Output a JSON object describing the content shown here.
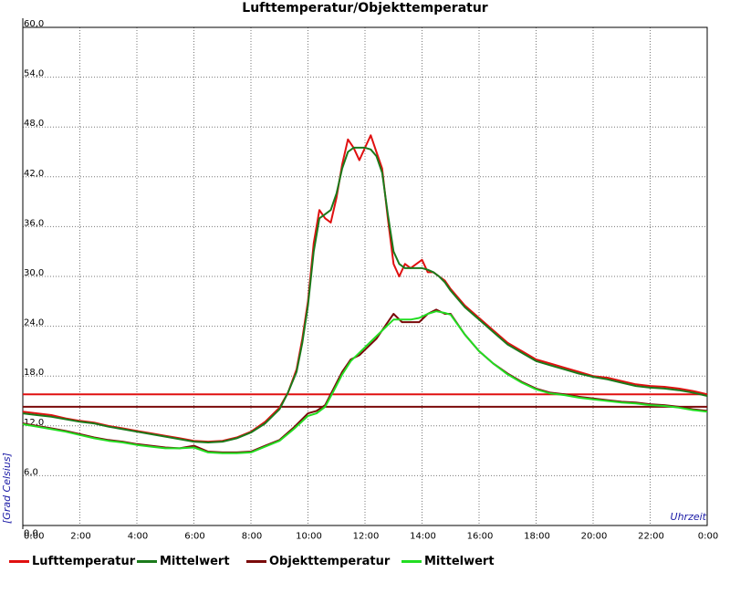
{
  "chart_data": {
    "type": "line",
    "title": "Lufttemperatur/Objekttemperatur",
    "xlabel": "Uhrzeit",
    "ylabel": "[Grad Celsius]",
    "xlim": [
      0,
      24
    ],
    "ylim": [
      0,
      60
    ],
    "x_ticks": [
      {
        "value": 0,
        "label": "0:00"
      },
      {
        "value": 2,
        "label": "2:00"
      },
      {
        "value": 4,
        "label": "4:00"
      },
      {
        "value": 6,
        "label": "6:00"
      },
      {
        "value": 8,
        "label": "8:00"
      },
      {
        "value": 10,
        "label": "10:00"
      },
      {
        "value": 12,
        "label": "12:00"
      },
      {
        "value": 14,
        "label": "14:00"
      },
      {
        "value": 16,
        "label": "16:00"
      },
      {
        "value": 18,
        "label": "18:00"
      },
      {
        "value": 20,
        "label": "20:00"
      },
      {
        "value": 22,
        "label": "22:00"
      },
      {
        "value": 24,
        "label": "0:00"
      }
    ],
    "y_ticks": [
      {
        "value": 6,
        "label": "6,0"
      },
      {
        "value": 12,
        "label": "12,0"
      },
      {
        "value": 18,
        "label": "18,0"
      },
      {
        "value": 24,
        "label": "24,0"
      },
      {
        "value": 30,
        "label": "30,0"
      },
      {
        "value": 36,
        "label": "36,0"
      },
      {
        "value": 42,
        "label": "42,0"
      },
      {
        "value": 48,
        "label": "48,0"
      },
      {
        "value": 54,
        "label": "54,0"
      },
      {
        "value": 60,
        "label": "60,0"
      }
    ],
    "y_extra_label": "0,0",
    "grid": true,
    "legend_position": "bottom",
    "series": [
      {
        "name": "Lufttemperatur",
        "color": "#e01010",
        "x": [
          0,
          0.5,
          1,
          1.5,
          2,
          2.5,
          3,
          3.5,
          4,
          4.5,
          5,
          5.5,
          6,
          6.5,
          7,
          7.5,
          8,
          8.5,
          9,
          9.3,
          9.6,
          9.8,
          10,
          10.2,
          10.4,
          10.6,
          10.8,
          11,
          11.2,
          11.4,
          11.6,
          11.8,
          12,
          12.2,
          12.4,
          12.6,
          12.8,
          13,
          13.2,
          13.4,
          13.6,
          13.8,
          14,
          14.2,
          14.4,
          14.6,
          14.8,
          15,
          15.5,
          16,
          16.5,
          17,
          17.5,
          18,
          18.5,
          19,
          19.5,
          20,
          20.5,
          21,
          21.5,
          22,
          22.5,
          23,
          23.5,
          24
        ],
        "y": [
          13.7,
          13.5,
          13.3,
          12.9,
          12.6,
          12.4,
          12.0,
          11.7,
          11.4,
          11.1,
          10.8,
          10.5,
          10.2,
          10.1,
          10.2,
          10.6,
          11.3,
          12.5,
          14.2,
          16.0,
          18.8,
          22.5,
          27.0,
          34.0,
          38.0,
          37.0,
          36.5,
          39.5,
          43.5,
          46.5,
          45.5,
          44.0,
          45.5,
          47.0,
          45.0,
          43.0,
          37.0,
          31.5,
          30.0,
          31.5,
          31.0,
          31.5,
          32.0,
          30.5,
          30.5,
          30.0,
          29.5,
          28.5,
          26.5,
          25.0,
          23.5,
          22.0,
          21.0,
          20.0,
          19.5,
          19.0,
          18.5,
          18.0,
          17.8,
          17.4,
          17.0,
          16.8,
          16.7,
          16.5,
          16.2,
          15.8
        ]
      },
      {
        "name": "Mittelwert",
        "color": "#1b7a1b",
        "x": [
          0,
          0.5,
          1,
          1.5,
          2,
          2.5,
          3,
          3.5,
          4,
          4.5,
          5,
          5.5,
          6,
          6.5,
          7,
          7.5,
          8,
          8.5,
          9,
          9.3,
          9.6,
          9.8,
          10,
          10.2,
          10.4,
          10.6,
          10.8,
          11,
          11.2,
          11.4,
          11.6,
          11.8,
          12,
          12.2,
          12.4,
          12.6,
          12.8,
          13,
          13.2,
          13.4,
          13.6,
          13.8,
          14,
          14.2,
          14.4,
          14.6,
          14.8,
          15,
          15.5,
          16,
          16.5,
          17,
          17.5,
          18,
          18.5,
          19,
          19.5,
          20,
          20.5,
          21,
          21.5,
          22,
          22.5,
          23,
          23.5,
          24
        ],
        "y": [
          13.5,
          13.3,
          13.1,
          12.8,
          12.5,
          12.3,
          11.9,
          11.6,
          11.3,
          11.0,
          10.7,
          10.4,
          10.1,
          10.0,
          10.1,
          10.5,
          11.2,
          12.3,
          14.0,
          16.0,
          18.5,
          22.0,
          26.5,
          33.0,
          37.0,
          37.5,
          38.0,
          40.0,
          43.0,
          45.0,
          45.5,
          45.5,
          45.5,
          45.3,
          44.5,
          42.5,
          37.5,
          33.0,
          31.5,
          31.0,
          31.0,
          31.0,
          31.0,
          30.8,
          30.5,
          30.0,
          29.3,
          28.3,
          26.3,
          24.8,
          23.3,
          21.8,
          20.8,
          19.8,
          19.3,
          18.8,
          18.3,
          17.9,
          17.6,
          17.2,
          16.8,
          16.6,
          16.5,
          16.3,
          16.0,
          15.6
        ]
      },
      {
        "name": "Objekttemperatur",
        "color": "#7a0a0a",
        "x": [
          0,
          0.5,
          1,
          1.5,
          2,
          2.5,
          3,
          3.5,
          4,
          4.5,
          5,
          5.5,
          6,
          6.5,
          7,
          7.5,
          8,
          8.5,
          9,
          9.5,
          10,
          10.3,
          10.6,
          10.9,
          11.2,
          11.5,
          11.8,
          12.1,
          12.4,
          12.7,
          13,
          13.3,
          13.6,
          13.9,
          14.2,
          14.5,
          14.8,
          15,
          15.5,
          16,
          16.5,
          17,
          17.5,
          18,
          18.5,
          19,
          19.5,
          20,
          20.5,
          21,
          21.5,
          22,
          22.5,
          23,
          23.5,
          24
        ],
        "y": [
          12.3,
          12.0,
          11.7,
          11.4,
          11.0,
          10.6,
          10.3,
          10.1,
          9.8,
          9.6,
          9.4,
          9.3,
          9.6,
          8.9,
          8.8,
          8.8,
          8.9,
          9.6,
          10.3,
          11.8,
          13.5,
          13.8,
          14.5,
          16.5,
          18.5,
          20.0,
          20.5,
          21.5,
          22.5,
          24.0,
          25.5,
          24.5,
          24.5,
          24.5,
          25.5,
          26.0,
          25.5,
          25.5,
          23.0,
          21.0,
          19.5,
          18.3,
          17.3,
          16.5,
          16.0,
          15.8,
          15.5,
          15.3,
          15.1,
          14.9,
          14.8,
          14.6,
          14.5,
          14.3,
          14.0,
          13.8
        ]
      },
      {
        "name": "Mittelwert",
        "color": "#22dd22",
        "x": [
          0,
          0.5,
          1,
          1.5,
          2,
          2.5,
          3,
          3.5,
          4,
          4.5,
          5,
          5.5,
          6,
          6.5,
          7,
          7.5,
          8,
          8.5,
          9,
          9.5,
          10,
          10.3,
          10.6,
          10.9,
          11.2,
          11.5,
          11.8,
          12.1,
          12.4,
          12.7,
          13,
          13.3,
          13.6,
          13.9,
          14.2,
          14.5,
          14.8,
          15,
          15.5,
          16,
          16.5,
          17,
          17.5,
          18,
          18.5,
          19,
          19.5,
          20,
          20.5,
          21,
          21.5,
          22,
          22.5,
          23,
          23.5,
          24
        ],
        "y": [
          12.2,
          11.9,
          11.6,
          11.3,
          10.9,
          10.5,
          10.2,
          10.0,
          9.7,
          9.5,
          9.3,
          9.3,
          9.4,
          8.8,
          8.7,
          8.7,
          8.8,
          9.5,
          10.2,
          11.6,
          13.2,
          13.5,
          14.3,
          16.2,
          18.2,
          19.8,
          20.8,
          21.8,
          22.8,
          23.8,
          24.8,
          24.8,
          24.8,
          25.0,
          25.5,
          25.8,
          25.6,
          25.4,
          23.0,
          21.0,
          19.5,
          18.2,
          17.2,
          16.4,
          15.9,
          15.7,
          15.4,
          15.2,
          15.0,
          14.8,
          14.7,
          14.5,
          14.4,
          14.2,
          13.9,
          13.7
        ]
      }
    ],
    "reference_lines": [
      {
        "value": 15.8,
        "color": "#e01010"
      },
      {
        "value": 14.3,
        "color": "#7a0a0a"
      }
    ]
  }
}
